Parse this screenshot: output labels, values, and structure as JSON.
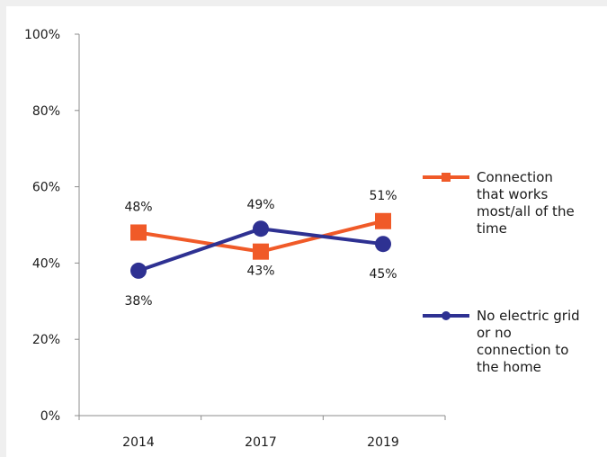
{
  "chart_data": {
    "type": "line",
    "title": "",
    "xlabel": "",
    "ylabel": "",
    "categories": [
      "2014",
      "2017",
      "2019"
    ],
    "ylim": [
      0,
      100
    ],
    "yticks": [
      "0%",
      "20%",
      "40%",
      "60%",
      "80%",
      "100%"
    ],
    "grid": false,
    "legend_position": "right",
    "series": [
      {
        "name": "Connection that works most/all of the time",
        "legend_lines": [
          "Connection",
          "that works",
          "most/all of the",
          "time"
        ],
        "values": [
          48,
          43,
          51
        ],
        "labels": [
          "48%",
          "43%",
          "51%"
        ],
        "color": "#f05a28",
        "marker": "square"
      },
      {
        "name": "No electric grid or no connection to the home",
        "legend_lines": [
          "No electric grid",
          "or no",
          "connection to",
          "the home"
        ],
        "values": [
          38,
          49,
          45
        ],
        "labels": [
          "38%",
          "49%",
          "45%"
        ],
        "color": "#2e3192",
        "marker": "circle"
      }
    ]
  }
}
